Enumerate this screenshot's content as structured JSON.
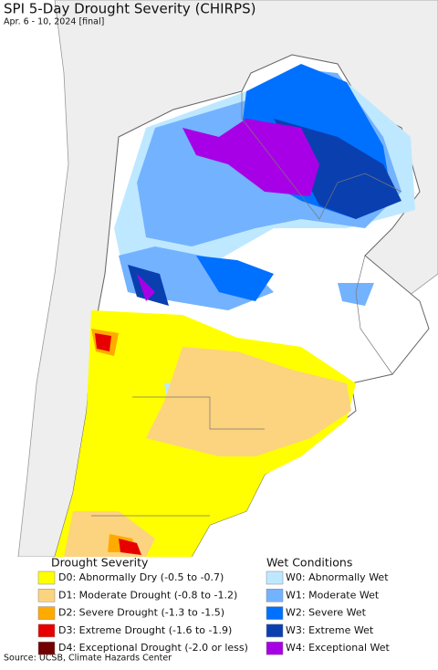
{
  "header": {
    "title": "SPI 5-Day Drought Severity (CHIRPS)",
    "subtitle": "Apr. 6 - 10, 2024 [final]"
  },
  "legend": {
    "drought": {
      "title": "Drought Severity",
      "items": [
        {
          "label": "D0: Abnormally Dry (-0.5 to -0.7)",
          "color": "#ffff00"
        },
        {
          "label": "D1: Moderate Drought (-0.8 to -1.2)",
          "color": "#fcd37f"
        },
        {
          "label": "D2: Severe Drought (-1.3 to -1.5)",
          "color": "#ffaa00"
        },
        {
          "label": "D3: Extreme Drought (-1.6 to -1.9)",
          "color": "#e60000"
        },
        {
          "label": "D4: Exceptional Drought (-2.0 or less)",
          "color": "#730000"
        }
      ]
    },
    "wet": {
      "title": "Wet Conditions",
      "items": [
        {
          "label": "W0: Abnormally Wet",
          "color": "#bee8ff"
        },
        {
          "label": "W1: Moderate Wet",
          "color": "#73b2ff"
        },
        {
          "label": "W2: Severe Wet",
          "color": "#0070ff"
        },
        {
          "label": "W3: Extreme Wet",
          "color": "#0a3fb0"
        },
        {
          "label": "W4: Exceptional Wet",
          "color": "#a800e6"
        }
      ]
    }
  },
  "footer": {
    "source": "Source: UCSB, Climate Hazards Center"
  }
}
